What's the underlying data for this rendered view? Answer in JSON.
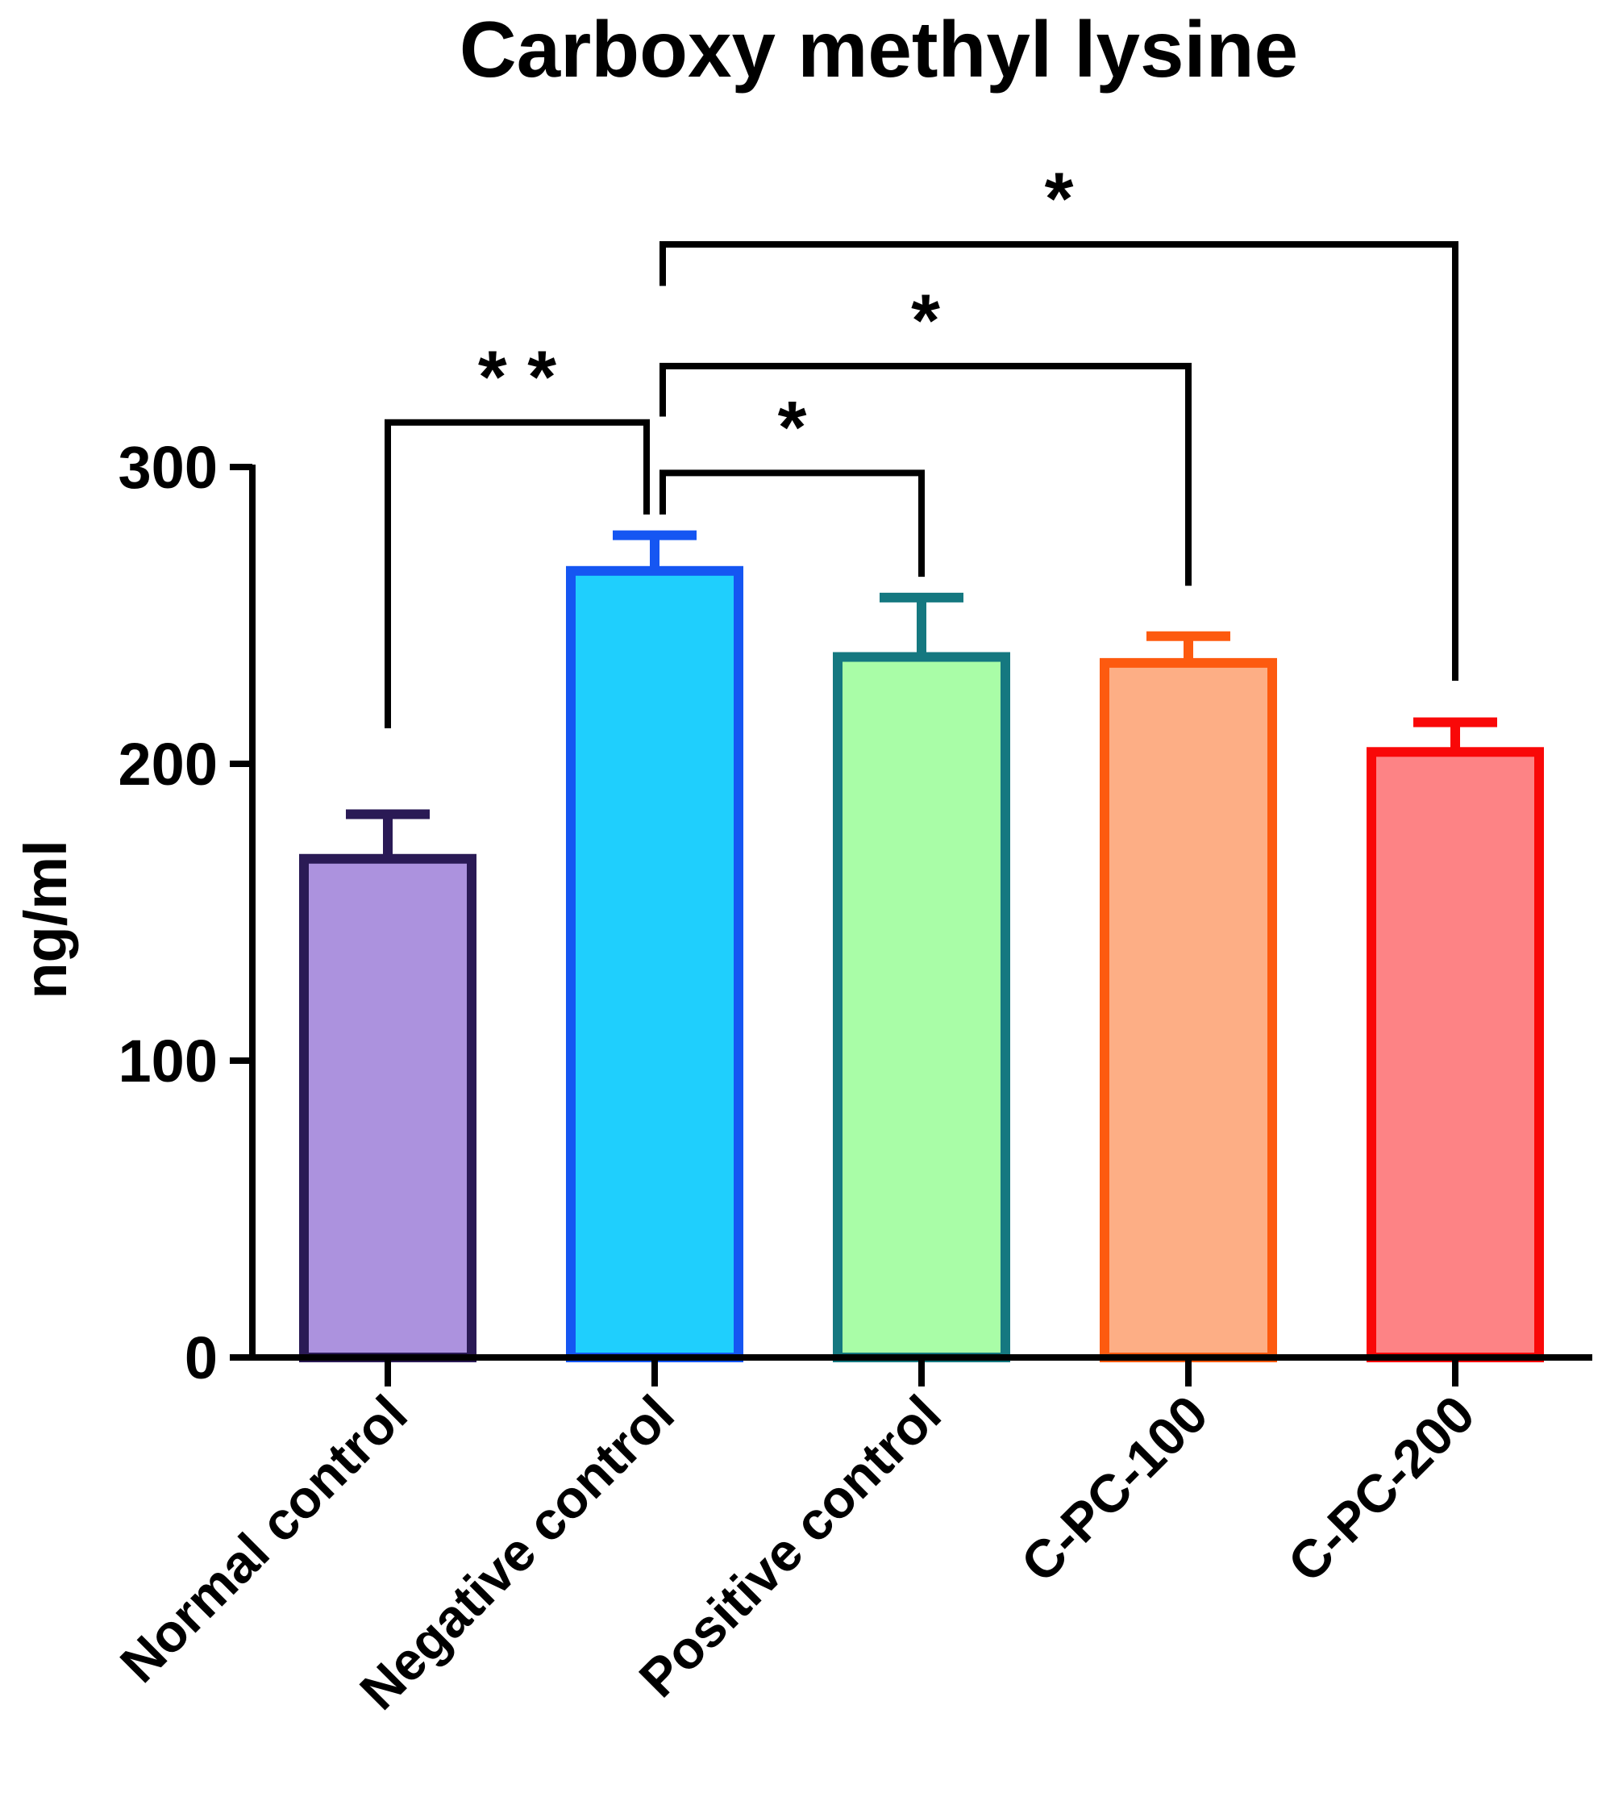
{
  "chart_data": {
    "type": "bar",
    "title": "Carboxy methyl lysine",
    "xlabel": "",
    "ylabel": "ng/ml",
    "ylim": [
      0,
      300
    ],
    "yticks": [
      "0",
      "100",
      "200",
      "300"
    ],
    "ytick_values": [
      0,
      100,
      200,
      300
    ],
    "grid": false,
    "categories": [
      "Normal control",
      "Negative control",
      "Positive control",
      "C-PC-100",
      "C-PC-200"
    ],
    "values": [
      168,
      265,
      236,
      234,
      204
    ],
    "errors": [
      15,
      12,
      20,
      9,
      10
    ],
    "fill_colors": [
      "#ac92de",
      "#1fcffd",
      "#a9fda7",
      "#fdae85",
      "#fd8385"
    ],
    "stroke_colors": [
      "#2a1a55",
      "#1556f2",
      "#157880",
      "#fd5a0f",
      "#f90808"
    ],
    "significance": [
      {
        "from": 0,
        "to": 1,
        "label": "* *",
        "y": 315,
        "y_from_end": 212,
        "y_to_end": 284
      },
      {
        "from": 1,
        "to": 2,
        "label": "*",
        "y": 298,
        "y_from_end": 284,
        "y_to_end": 263
      },
      {
        "from": 1,
        "to": 3,
        "label": "*",
        "y": 334,
        "y_from_end": 317,
        "y_to_end": 260
      },
      {
        "from": 1,
        "to": 4,
        "label": "*",
        "y": 375,
        "y_from_end": 361,
        "y_to_end": 228
      }
    ]
  }
}
